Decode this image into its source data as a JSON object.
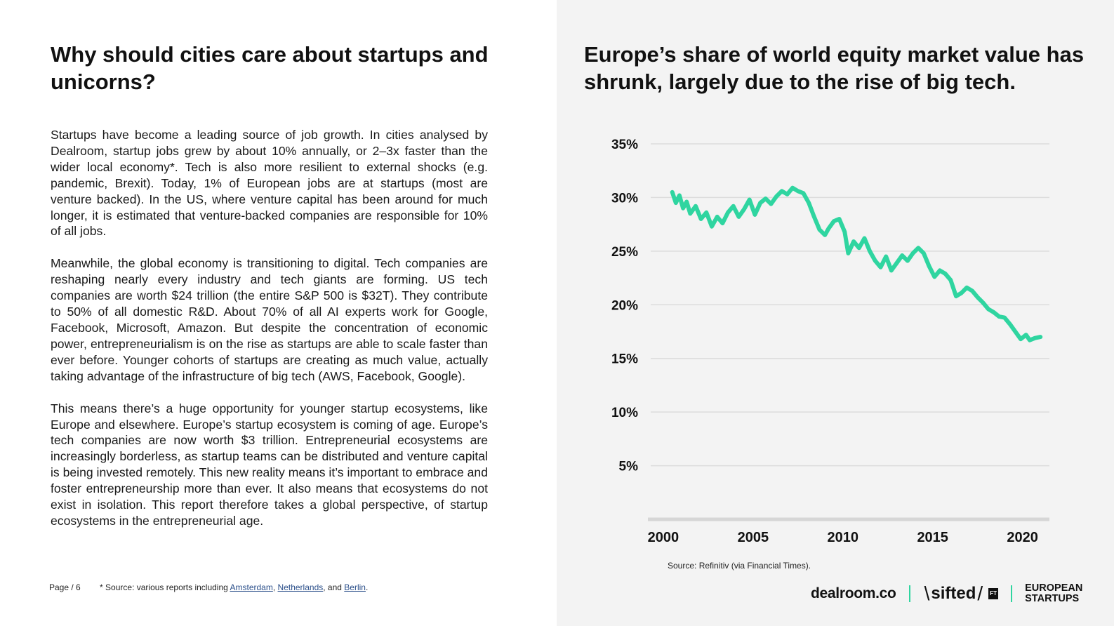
{
  "left": {
    "title": "Why should cities care about startups and unicorns?",
    "paragraphs": [
      "Startups have become a leading source of job growth. In cities analysed by Dealroom, startup jobs grew by about 10% annually, or 2–3x faster than the wider local economy*. Tech is also more resilient to external shocks (e.g. pandemic, Brexit). Today, 1% of European jobs are at startups (most are venture backed). In the US, where venture capital has been around for much longer, it is estimated that venture-backed companies are responsible for 10% of all jobs.",
      "Meanwhile, the global economy is transitioning to digital. Tech companies are reshaping nearly every industry and tech giants are forming. US tech companies are worth $24 trillion (the entire S&P 500 is $32T). They contribute to 50% of all domestic R&D. About 70% of all AI experts work for Google, Facebook, Microsoft, Amazon. But despite the concentration of economic power, entrepreneurialism is on the rise as startups are able to scale faster than ever before. Younger cohorts of startups are creating as much value, actually taking advantage of the infrastructure of big tech (AWS, Facebook, Google).",
      "This means there’s a huge opportunity for younger startup ecosystems, like Europe and elsewhere. Europe’s startup ecosystem is coming of age. Europe’s tech companies are now worth $3 trillion. Entrepreneurial ecosystems are increasingly borderless, as startup teams can be distributed and venture capital is being invested remotely. This new reality means it’s important to embrace and foster entrepreneurship more than ever. It also means that ecosystems do not exist in isolation. This report therefore takes a global perspective, of startup ecosystems in the entrepreneurial age."
    ],
    "footer": {
      "page": "Page / 6",
      "source_prefix": "* Source: various reports including",
      "link_amsterdam": "Amsterdam",
      "comma1": ",",
      "link_netherlands": "Netherlands",
      "and_text": ", and",
      "link_berlin": "Berlin",
      "period": "."
    }
  },
  "right": {
    "title": "Europe’s share of world equity market value has shrunk, largely due to the rise of big tech.",
    "source": "Source: Refinitiv (via Financial Times).",
    "logos": {
      "dealroom": "dealroom.co",
      "sifted": "sifted",
      "ft": "FT",
      "eu_line1": "EUROPEAN",
      "eu_line2": "STARTUPS"
    }
  },
  "colors": {
    "line": "#2fd5a0",
    "grid": "#dcdcdc",
    "axis": "#d6d6d6"
  },
  "chart_data": {
    "type": "line",
    "title": "Europe’s share of world equity market value has shrunk, largely due to the rise of big tech.",
    "xlabel": "",
    "ylabel": "",
    "xlim": [
      1999.3,
      2021.5
    ],
    "ylim": [
      0,
      35
    ],
    "yticks": [
      5,
      10,
      15,
      20,
      25,
      30,
      35
    ],
    "ytick_labels": [
      "5%",
      "10%",
      "15%",
      "20%",
      "25%",
      "30%",
      "35%"
    ],
    "xticks": [
      2000,
      2005,
      2010,
      2015,
      2020
    ],
    "xtick_labels": [
      "2000",
      "2005",
      "2010",
      "2015",
      "2020"
    ],
    "grid": true,
    "series": [
      {
        "name": "Europe share of world equity market value",
        "x": [
          2000.5,
          2000.7,
          2000.9,
          2001.1,
          2001.3,
          2001.5,
          2001.8,
          2002.1,
          2002.4,
          2002.7,
          2003.0,
          2003.3,
          2003.6,
          2003.9,
          2004.2,
          2004.5,
          2004.8,
          2005.1,
          2005.4,
          2005.7,
          2006.0,
          2006.3,
          2006.6,
          2006.9,
          2007.2,
          2007.5,
          2007.8,
          2008.1,
          2008.4,
          2008.7,
          2009.0,
          2009.2,
          2009.5,
          2009.8,
          2010.1,
          2010.3,
          2010.6,
          2010.9,
          2011.2,
          2011.5,
          2011.8,
          2012.1,
          2012.4,
          2012.7,
          2013.0,
          2013.3,
          2013.6,
          2013.9,
          2014.2,
          2014.5,
          2014.8,
          2015.1,
          2015.4,
          2015.7,
          2016.0,
          2016.3,
          2016.6,
          2016.9,
          2017.2,
          2017.5,
          2017.8,
          2018.1,
          2018.4,
          2018.7,
          2019.0,
          2019.3,
          2019.6,
          2019.9,
          2020.2,
          2020.4,
          2020.7,
          2021.0
        ],
        "values": [
          30.5,
          29.5,
          30.2,
          29.0,
          29.6,
          28.5,
          29.2,
          28.0,
          28.6,
          27.3,
          28.2,
          27.6,
          28.6,
          29.2,
          28.2,
          28.9,
          29.8,
          28.4,
          29.5,
          29.9,
          29.4,
          30.1,
          30.6,
          30.3,
          30.9,
          30.6,
          30.4,
          29.5,
          28.2,
          27.0,
          26.5,
          27.1,
          27.8,
          28.0,
          26.8,
          24.8,
          25.9,
          25.3,
          26.2,
          25.0,
          24.1,
          23.5,
          24.5,
          23.2,
          23.9,
          24.6,
          24.1,
          24.8,
          25.3,
          24.8,
          23.6,
          22.6,
          23.2,
          22.9,
          22.3,
          20.8,
          21.1,
          21.6,
          21.3,
          20.7,
          20.2,
          19.6,
          19.3,
          18.9,
          18.8,
          18.2,
          17.5,
          16.8,
          17.2,
          16.7,
          16.9,
          17.0
        ]
      }
    ]
  }
}
